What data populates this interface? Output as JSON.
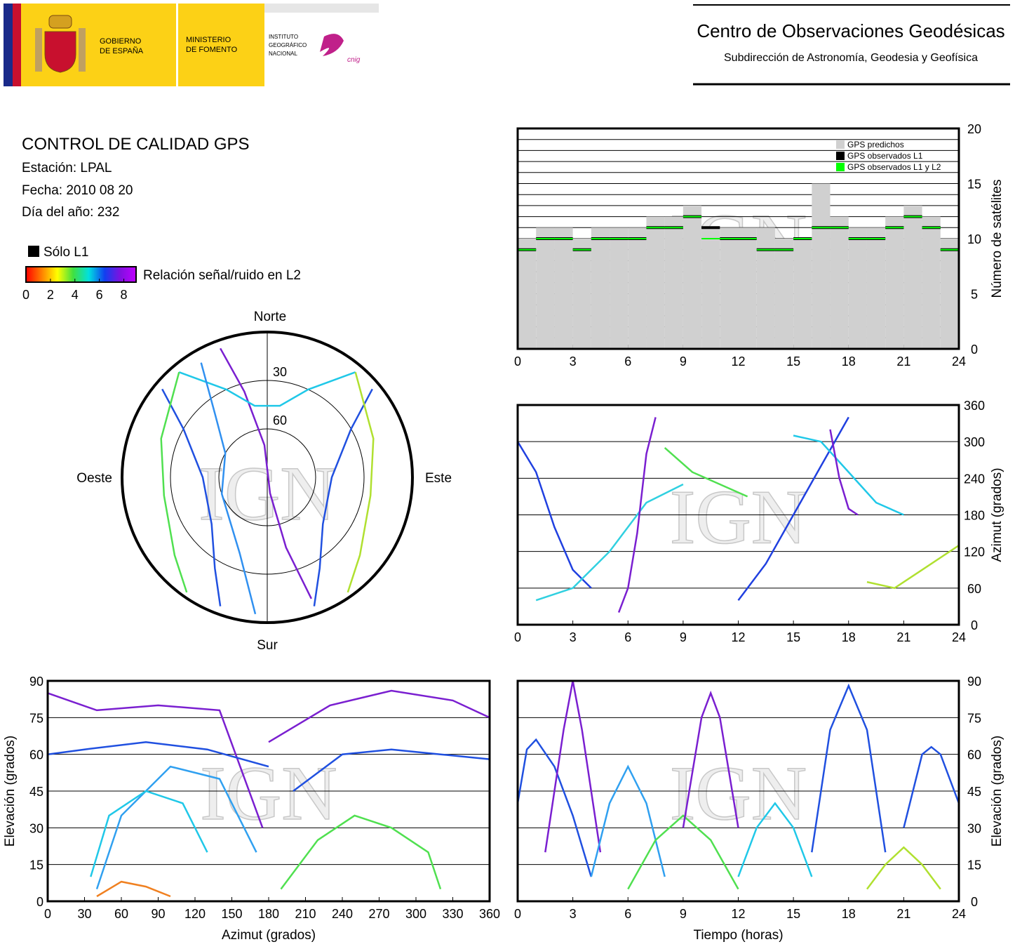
{
  "header": {
    "government": [
      "GOBIERNO",
      "DE ESPAÑA"
    ],
    "ministry": [
      "MINISTERIO",
      "DE FOMENTO"
    ],
    "institute": [
      "INSTITUTO",
      "GEOGRÁFICO",
      "NACIONAL"
    ],
    "cnig": "cnig",
    "center_title": "Centro de Observaciones Geodésicas",
    "center_subtitle": "Subdirección de Astronomía, Geodesia y Geofísica"
  },
  "info": {
    "title": "CONTROL DE CALIDAD GPS",
    "station": "Estación: LPAL",
    "date": "Fecha: 2010 08 20",
    "day_of_year": "Día del año: 232"
  },
  "l1_only": {
    "label": "Sólo L1",
    "color": "#000000"
  },
  "colorbar": {
    "label": "Relación señal/ruido en L2",
    "lim": [
      0,
      9
    ],
    "ticks": [
      0,
      2,
      4,
      6,
      8
    ],
    "colors": [
      "#ff0000",
      "#ff8000",
      "#ffff00",
      "#40e040",
      "#00e0e0",
      "#1040f0",
      "#8010e0",
      "#c000ff"
    ]
  },
  "watermark": "IGN",
  "chart_data": [
    {
      "type": "step",
      "y_axis_side": "right",
      "ylabel": "Número de satélites",
      "xlim": [
        0,
        24
      ],
      "xticks": [
        0,
        3,
        6,
        9,
        12,
        15,
        18,
        21,
        24
      ],
      "ylim": [
        0,
        20
      ],
      "yticks": [
        0,
        5,
        10,
        15,
        20
      ],
      "minor_yticks": [
        1,
        2,
        3,
        4,
        6,
        7,
        8,
        9,
        11,
        12,
        13,
        14,
        16,
        17,
        18,
        19
      ],
      "grid": true,
      "x": [
        0,
        1,
        2,
        3,
        4,
        5,
        6,
        7,
        8,
        9,
        10,
        11,
        12,
        13,
        14,
        15,
        16,
        17,
        18,
        19,
        20,
        21,
        22,
        23
      ],
      "series": [
        {
          "name": "GPS predichos",
          "color": "#d0d0d0",
          "values": [
            10,
            11,
            11,
            10,
            11,
            11,
            11,
            12,
            12,
            13,
            11,
            11,
            11,
            11,
            10,
            10,
            15,
            12,
            11,
            11,
            12,
            13,
            12,
            10
          ]
        },
        {
          "name": "GPS observados L1",
          "color": "#000000",
          "values": [
            9,
            10,
            10,
            9,
            10,
            10,
            10,
            11,
            11,
            12,
            11,
            10,
            10,
            9,
            9,
            10,
            11,
            11,
            10,
            10,
            11,
            12,
            11,
            9
          ]
        },
        {
          "name": "GPS observados L1 y L2",
          "color": "#00ff00",
          "values": [
            9,
            10,
            10,
            9,
            10,
            10,
            10,
            11,
            11,
            12,
            10,
            10,
            10,
            9,
            9,
            10,
            11,
            11,
            10,
            10,
            11,
            12,
            11,
            9
          ]
        }
      ]
    },
    {
      "type": "line",
      "y_axis_side": "right",
      "ylabel": "Azimut (grados)",
      "xlim": [
        0,
        24
      ],
      "xticks": [
        0,
        3,
        6,
        9,
        12,
        15,
        18,
        21,
        24
      ],
      "ylim": [
        0,
        360
      ],
      "yticks": [
        0,
        60,
        120,
        180,
        240,
        300,
        360
      ],
      "grid": true,
      "series": [
        {
          "color": "#2040e0",
          "x": [
            0,
            1,
            2,
            3,
            4
          ],
          "values": [
            300,
            250,
            160,
            90,
            60
          ]
        },
        {
          "color": "#30d0e0",
          "x": [
            1,
            3,
            5,
            7,
            9
          ],
          "values": [
            40,
            60,
            120,
            200,
            230
          ]
        },
        {
          "color": "#7a1fd0",
          "x": [
            5.5,
            6,
            6.5,
            7,
            7.5
          ],
          "values": [
            20,
            60,
            150,
            280,
            340
          ]
        },
        {
          "color": "#50e050",
          "x": [
            8,
            9.5,
            11,
            12.5
          ],
          "values": [
            290,
            250,
            230,
            210
          ]
        },
        {
          "color": "#2040e0",
          "x": [
            12,
            13.5,
            15,
            16.5,
            18
          ],
          "values": [
            40,
            100,
            180,
            260,
            340
          ]
        },
        {
          "color": "#20c8e8",
          "x": [
            15,
            16.5,
            18,
            19.5,
            21
          ],
          "values": [
            310,
            300,
            250,
            200,
            180
          ]
        },
        {
          "color": "#7a1fd0",
          "x": [
            17,
            17.5,
            18,
            18.5
          ],
          "values": [
            320,
            240,
            190,
            180
          ]
        },
        {
          "color": "#b0e030",
          "x": [
            19,
            20.5,
            22,
            24
          ],
          "values": [
            70,
            60,
            90,
            130
          ]
        }
      ]
    },
    {
      "type": "polar",
      "directions": {
        "north": "Norte",
        "east": "Este",
        "south": "Sur",
        "west": "Oeste"
      },
      "rlim": [
        90,
        0
      ],
      "rings": [
        30,
        60
      ],
      "series": [
        {
          "color": "#7a1fd0",
          "azimuth": [
            340,
            345,
            355,
            170,
            165,
            160
          ],
          "elevation": [
            5,
            35,
            70,
            80,
            45,
            10
          ]
        },
        {
          "color": "#2050e0",
          "azimuth": [
            310,
            300,
            270,
            230,
            210,
            200
          ],
          "elevation": [
            5,
            30,
            50,
            45,
            25,
            5
          ]
        },
        {
          "color": "#2050e0",
          "azimuth": [
            50,
            60,
            90,
            130,
            150,
            160
          ],
          "elevation": [
            5,
            30,
            50,
            45,
            25,
            5
          ]
        },
        {
          "color": "#20c8e8",
          "azimuth": [
            40,
            25,
            10,
            350,
            335,
            320
          ],
          "elevation": [
            5,
            30,
            45,
            45,
            30,
            5
          ]
        },
        {
          "color": "#50e050",
          "azimuth": [
            320,
            290,
            260,
            230,
            215
          ],
          "elevation": [
            5,
            20,
            25,
            15,
            3
          ]
        },
        {
          "color": "#b0e030",
          "azimuth": [
            40,
            70,
            100,
            130,
            145
          ],
          "elevation": [
            5,
            20,
            25,
            15,
            3
          ]
        },
        {
          "color": "#3090f0",
          "azimuth": [
            330,
            320,
            300,
            250,
            200,
            185
          ],
          "elevation": [
            8,
            40,
            60,
            60,
            40,
            5
          ]
        }
      ]
    },
    {
      "type": "line",
      "y_axis_side": "left",
      "xlabel": "Azimut (grados)",
      "ylabel": "Elevación (grados)",
      "xlim": [
        0,
        360
      ],
      "xticks": [
        0,
        30,
        60,
        90,
        120,
        150,
        180,
        210,
        240,
        270,
        300,
        330,
        360
      ],
      "ylim": [
        0,
        90
      ],
      "yticks": [
        0,
        15,
        30,
        45,
        60,
        75,
        90
      ],
      "grid": true,
      "series": [
        {
          "color": "#7a1fd0",
          "x": [
            0,
            40,
            90,
            140,
            175
          ],
          "values": [
            85,
            78,
            80,
            78,
            30
          ]
        },
        {
          "color": "#2050e0",
          "x": [
            0,
            30,
            80,
            130,
            180
          ],
          "values": [
            60,
            62,
            65,
            62,
            55
          ]
        },
        {
          "color": "#30a0f0",
          "x": [
            40,
            60,
            100,
            140,
            170
          ],
          "values": [
            5,
            35,
            55,
            50,
            20
          ]
        },
        {
          "color": "#20c8e8",
          "x": [
            35,
            50,
            80,
            110,
            130
          ],
          "values": [
            10,
            35,
            45,
            40,
            20
          ]
        },
        {
          "color": "#50e050",
          "x": [
            190,
            220,
            250,
            280,
            310,
            320
          ],
          "values": [
            5,
            25,
            35,
            30,
            20,
            5
          ]
        },
        {
          "color": "#2050e0",
          "x": [
            200,
            240,
            280,
            320,
            360
          ],
          "values": [
            45,
            60,
            62,
            60,
            58
          ]
        },
        {
          "color": "#7a1fd0",
          "x": [
            180,
            230,
            280,
            330,
            360
          ],
          "values": [
            65,
            80,
            86,
            82,
            75
          ]
        },
        {
          "color": "#f08020",
          "x": [
            40,
            60,
            80,
            100
          ],
          "values": [
            2,
            8,
            6,
            2
          ]
        }
      ]
    },
    {
      "type": "line",
      "y_axis_side": "right",
      "xlabel": "Tiempo (horas)",
      "ylabel": "Elevación (grados)",
      "xlim": [
        0,
        24
      ],
      "xticks": [
        0,
        3,
        6,
        9,
        12,
        15,
        18,
        21,
        24
      ],
      "ylim": [
        0,
        90
      ],
      "yticks": [
        0,
        15,
        30,
        45,
        60,
        75,
        90
      ],
      "grid": true,
      "series": [
        {
          "color": "#2050e0",
          "x": [
            0,
            0.5,
            1,
            2,
            3,
            4
          ],
          "values": [
            40,
            62,
            66,
            55,
            35,
            10
          ]
        },
        {
          "color": "#7a1fd0",
          "x": [
            1.5,
            2.5,
            3,
            3.5,
            4.5
          ],
          "values": [
            20,
            70,
            90,
            70,
            20
          ]
        },
        {
          "color": "#30a0f0",
          "x": [
            4,
            5,
            6,
            7,
            8
          ],
          "values": [
            10,
            40,
            55,
            40,
            10
          ]
        },
        {
          "color": "#50e050",
          "x": [
            6,
            7.5,
            9,
            10.5,
            12
          ],
          "values": [
            5,
            25,
            35,
            25,
            5
          ]
        },
        {
          "color": "#7a1fd0",
          "x": [
            9,
            10,
            10.5,
            11,
            12
          ],
          "values": [
            30,
            75,
            85,
            75,
            30
          ]
        },
        {
          "color": "#20c8e8",
          "x": [
            12,
            13,
            14,
            15,
            16
          ],
          "values": [
            10,
            30,
            40,
            30,
            10
          ]
        },
        {
          "color": "#2050e0",
          "x": [
            16,
            17,
            18,
            19,
            20
          ],
          "values": [
            20,
            70,
            88,
            70,
            20
          ]
        },
        {
          "color": "#b0e030",
          "x": [
            19,
            20,
            21,
            22,
            23
          ],
          "values": [
            5,
            15,
            22,
            15,
            5
          ]
        },
        {
          "color": "#2050e0",
          "x": [
            21,
            22,
            22.5,
            23,
            24
          ],
          "values": [
            30,
            60,
            63,
            60,
            40
          ]
        }
      ]
    }
  ]
}
